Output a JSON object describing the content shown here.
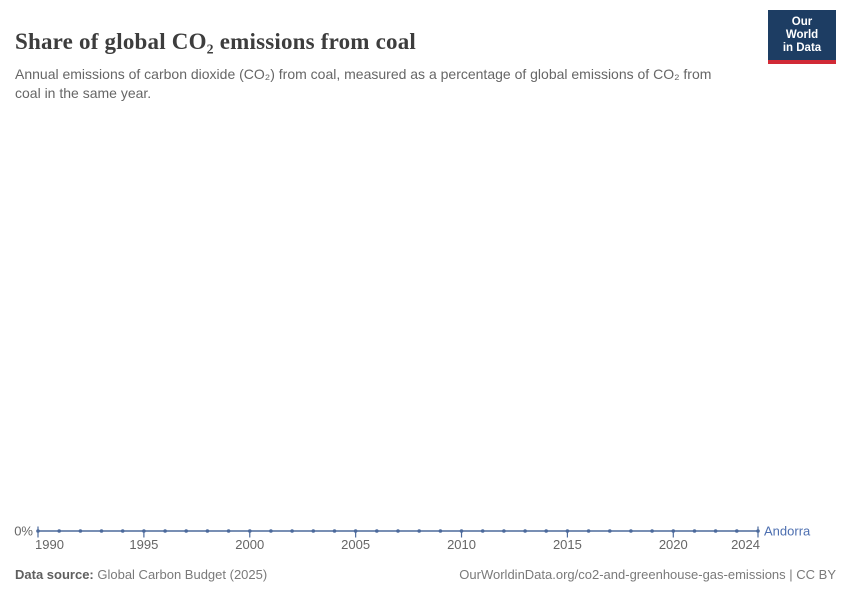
{
  "header": {
    "title": "Share of global CO₂ emissions from coal",
    "subtitle": "Annual emissions of carbon dioxide (CO₂) from coal, measured as a percentage of global emissions of CO₂ from coal in the same year.",
    "logo": {
      "line1": "Our World",
      "line2": "in Data",
      "bg_color": "#1d3d63",
      "accent_color": "#d12a36"
    }
  },
  "chart_data": {
    "type": "line",
    "title": "Share of global CO₂ emissions from coal",
    "x": [
      1990,
      1991,
      1992,
      1993,
      1994,
      1995,
      1996,
      1997,
      1998,
      1999,
      2000,
      2001,
      2002,
      2003,
      2004,
      2005,
      2006,
      2007,
      2008,
      2009,
      2010,
      2011,
      2012,
      2013,
      2014,
      2015,
      2016,
      2017,
      2018,
      2019,
      2020,
      2021,
      2022,
      2023,
      2024
    ],
    "series": [
      {
        "name": "Andorra",
        "color": "#4c6a9c",
        "label_color": "#4d6fb0",
        "values": [
          0,
          0,
          0,
          0,
          0,
          0,
          0,
          0,
          0,
          0,
          0,
          0,
          0,
          0,
          0,
          0,
          0,
          0,
          0,
          0,
          0,
          0,
          0,
          0,
          0,
          0,
          0,
          0,
          0,
          0,
          0,
          0,
          0,
          0,
          0
        ]
      }
    ],
    "x_ticks": [
      1990,
      1995,
      2000,
      2005,
      2010,
      2015,
      2020,
      2024
    ],
    "y_ticks": [
      {
        "value": 0,
        "label": "0%"
      }
    ],
    "xlim": [
      1990,
      2024
    ],
    "grid": false,
    "legend_position": "line-end",
    "axis_text_color": "#666666",
    "unit": "%"
  },
  "footer": {
    "source_label": "Data source:",
    "source_value": " Global Carbon Budget (2025)",
    "link_text": "OurWorldinData.org/co2-and-greenhouse-gas-emissions | CC BY"
  }
}
